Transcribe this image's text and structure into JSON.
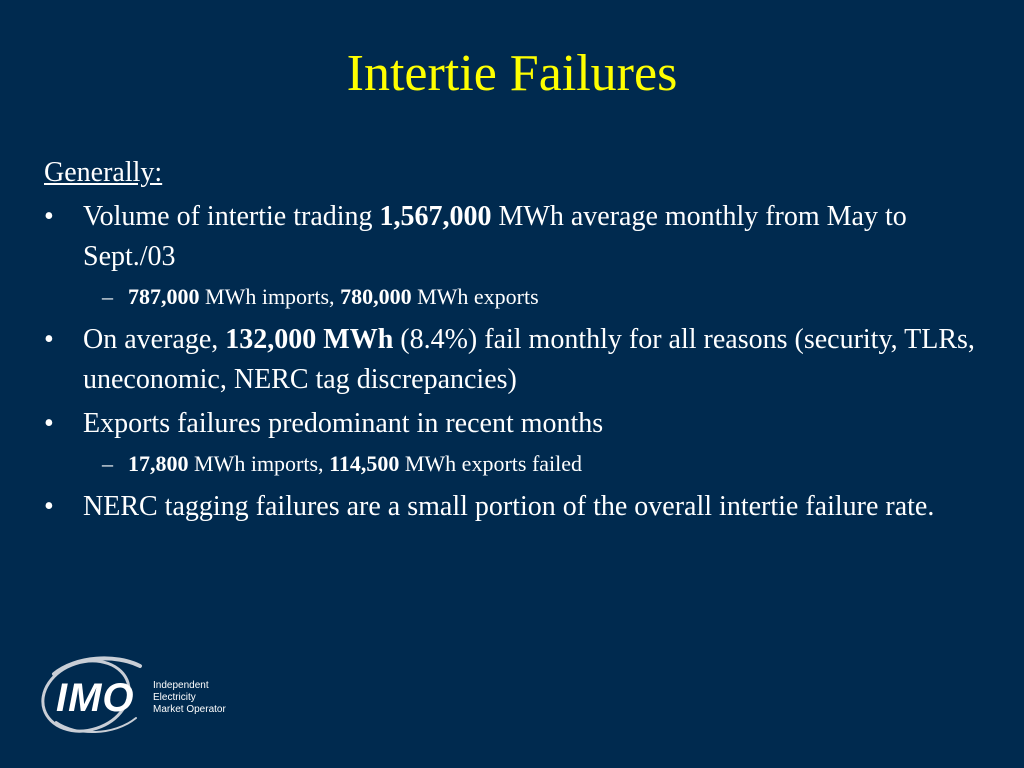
{
  "slide": {
    "title": "Intertie Failures",
    "heading": "Generally:",
    "bullets": [
      {
        "marker": "•",
        "parts": [
          "Volume of intertie trading ",
          "1,567,000",
          " MWh average monthly from May to Sept./03"
        ]
      },
      {
        "marker": "–",
        "parts": [
          "787,000",
          " MWh imports, ",
          "780,000",
          " MWh exports"
        ]
      },
      {
        "marker": "•",
        "parts": [
          "On average, ",
          "132,000 MWh",
          " (8.4%) fail monthly for all reasons (security, TLRs, uneconomic, NERC tag discrepancies)"
        ]
      },
      {
        "marker": "•",
        "parts": [
          "Exports failures predominant in recent months"
        ]
      },
      {
        "marker": "–",
        "parts": [
          "17,800",
          " MWh imports, ",
          "114,500",
          " MWh exports failed"
        ]
      },
      {
        "marker": "•",
        "parts": [
          "NERC tagging failures are a small portion of the overall intertie failure rate."
        ]
      }
    ]
  },
  "logo": {
    "word": "IMO",
    "name_lines": [
      "Independent",
      "Electricity",
      "Market Operator"
    ]
  },
  "colors": {
    "background": "#002a4f",
    "title": "#ffff00",
    "text": "#ffffff"
  }
}
